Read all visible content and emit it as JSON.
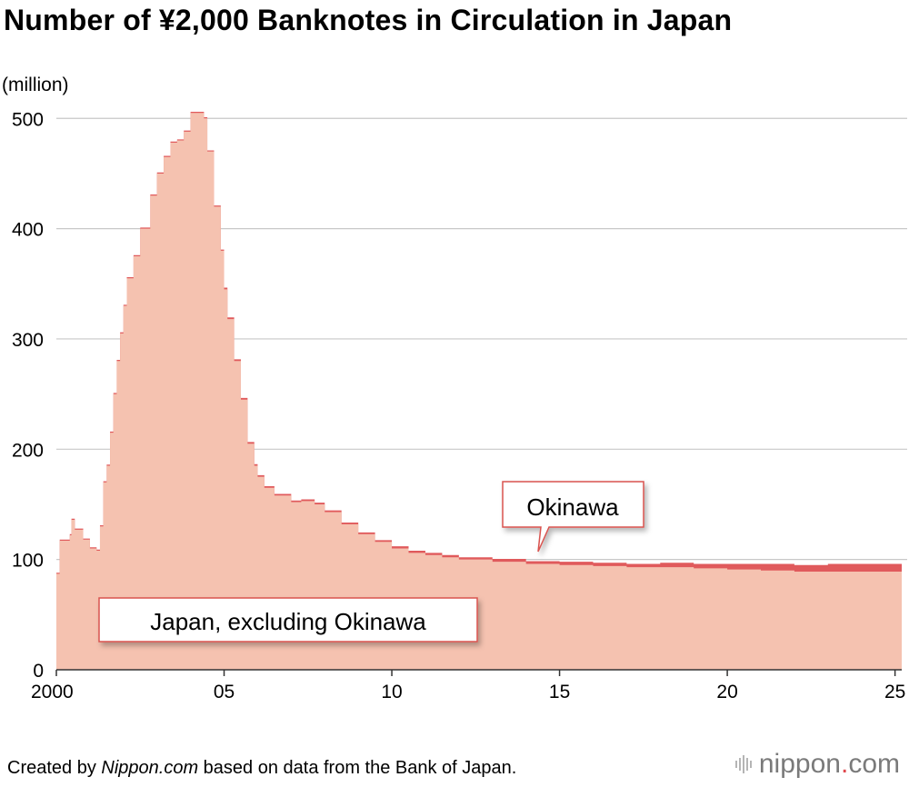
{
  "header": {
    "title": "Number of ¥2,000 Banknotes in Circulation in Japan",
    "unit": "(million)"
  },
  "footer": {
    "source_prefix": "Created by ",
    "source_site": "Nippon.com",
    "source_suffix": " based on data from the Bank of Japan.",
    "brand_name": "nippon",
    "brand_dot": ".",
    "brand_tld": "com"
  },
  "colors": {
    "japan_fill": "#f5c2b0",
    "okinawa": "#e05a5c",
    "grid": "#c8c8c8",
    "axis": "#333333",
    "callout_border": "#d9534f"
  },
  "chart_data": {
    "type": "area",
    "title": "Number of ¥2,000 Banknotes in Circulation in Japan",
    "ylabel": "(million)",
    "xlabel": "",
    "ylim": [
      0,
      520
    ],
    "xlim": [
      2000,
      2025.2
    ],
    "yticks": [
      0,
      100,
      200,
      300,
      400,
      500
    ],
    "xticks": [
      {
        "value": 2000,
        "label": "2000"
      },
      {
        "value": 2005,
        "label": "05"
      },
      {
        "value": 2010,
        "label": "10"
      },
      {
        "value": 2015,
        "label": "15"
      },
      {
        "value": 2020,
        "label": "20"
      },
      {
        "value": 2025,
        "label": "25"
      }
    ],
    "grid": true,
    "series": [
      {
        "name": "Japan, excluding Okinawa",
        "x": [
          2000.0,
          2000.1,
          2000.4,
          2000.45,
          2000.55,
          2000.8,
          2001.0,
          2001.2,
          2001.3,
          2001.4,
          2001.5,
          2001.6,
          2001.7,
          2001.8,
          2001.9,
          2002.0,
          2002.1,
          2002.3,
          2002.5,
          2002.8,
          2003.0,
          2003.2,
          2003.4,
          2003.6,
          2003.8,
          2004.0,
          2004.2,
          2004.4,
          2004.5,
          2004.7,
          2004.9,
          2005.0,
          2005.1,
          2005.3,
          2005.5,
          2005.7,
          2005.9,
          2006.0,
          2006.2,
          2006.5,
          2007.0,
          2007.3,
          2007.7,
          2008.0,
          2008.5,
          2009.0,
          2009.5,
          2010.0,
          2010.5,
          2011.0,
          2011.5,
          2012.0,
          2013.0,
          2014.0,
          2015.0,
          2016.0,
          2017.0,
          2018.0,
          2019.0,
          2020.0,
          2021.0,
          2022.0,
          2023.0,
          2024.0,
          2025.2
        ],
        "values": [
          87,
          117,
          122,
          136,
          127,
          118,
          110,
          108,
          130,
          170,
          185,
          215,
          250,
          280,
          305,
          330,
          355,
          375,
          400,
          430,
          450,
          465,
          478,
          480,
          488,
          505,
          505,
          500,
          470,
          420,
          380,
          345,
          318,
          280,
          245,
          205,
          185,
          175,
          165,
          158,
          152,
          153,
          150,
          143,
          132,
          123,
          116,
          110,
          106,
          104,
          102,
          100,
          98,
          96,
          95,
          94,
          93,
          93,
          92,
          91,
          90,
          89,
          89,
          89,
          87
        ]
      },
      {
        "name": "Okinawa",
        "x": [
          2000.0,
          2005.0,
          2010.0,
          2013.0,
          2015.0,
          2018.0,
          2020.0,
          2021.0,
          2023.0,
          2025.2
        ],
        "values": [
          1,
          1.5,
          2,
          2.5,
          3,
          4,
          5,
          6,
          7,
          7
        ]
      }
    ],
    "annotations": {
      "okinawa_label": "Okinawa",
      "japan_label": "Japan, excluding Okinawa"
    }
  }
}
